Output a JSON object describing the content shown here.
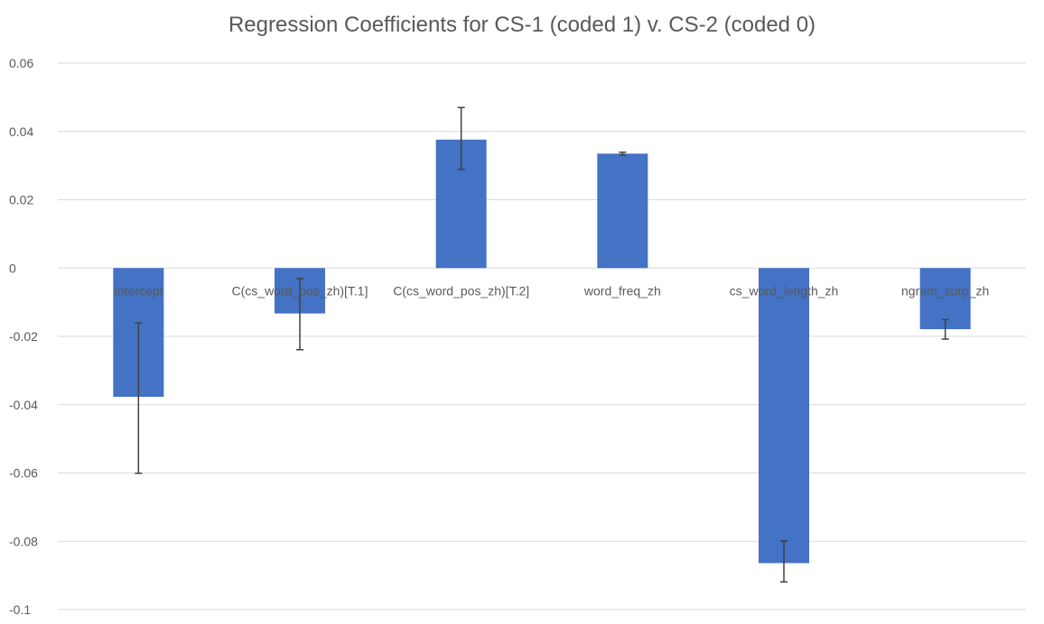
{
  "chart_data": {
    "type": "bar",
    "title": "Regression Coefficients for CS-1 (coded 1) v. CS-2 (coded 0)",
    "xlabel": "",
    "ylabel": "",
    "categories": [
      "Intercept",
      "C(cs_word_pos_zh)[T.1]",
      "C(cs_word_pos_zh)[T.2]",
      "word_freq_zh",
      "cs_word_length_zh",
      "ngram_surp_zh"
    ],
    "values": [
      -0.0377,
      -0.0133,
      0.0376,
      0.0335,
      -0.0864,
      -0.0179
    ],
    "error_low": [
      -0.0601,
      -0.0239,
      0.0289,
      0.0331,
      -0.0919,
      -0.0208
    ],
    "error_high": [
      -0.0161,
      -0.0031,
      0.047,
      0.0339,
      -0.0799,
      -0.0151
    ],
    "ylim": [
      -0.1,
      0.06
    ],
    "yticks": [
      0.06,
      0.04,
      0.02,
      0,
      -0.02,
      -0.04,
      -0.06,
      -0.08,
      -0.1
    ],
    "ytick_labels": [
      "0.06",
      "0.04",
      "0.02",
      "0",
      "-0.02",
      "-0.04",
      "-0.06",
      "-0.08",
      "-0.1"
    ],
    "grid": true,
    "bar_color": "#4472C4",
    "gridline_color": "#D9D9D9",
    "text_color": "#595959",
    "errorbar_color": "#404040"
  }
}
